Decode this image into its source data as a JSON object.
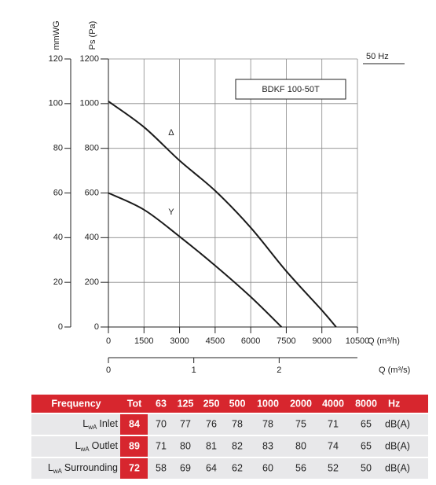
{
  "chart_data": {
    "type": "line",
    "x_label": "Q (m³/h)",
    "x2_label": "Q (m³/s)",
    "y_label": "Ps (Pa)",
    "y2_label": "mmWG",
    "model": "BDKF 100-50T",
    "frequency": "50 Hz",
    "xlim": [
      0,
      10500
    ],
    "xticks": [
      0,
      1500,
      3000,
      4500,
      6000,
      7500,
      9000,
      10500
    ],
    "x2lim": [
      0,
      2.917
    ],
    "x2ticks": [
      0,
      1,
      2
    ],
    "ylim": [
      0,
      1200
    ],
    "yticks": [
      0,
      200,
      400,
      600,
      800,
      1000,
      1200
    ],
    "y2lim": [
      0,
      120
    ],
    "y2ticks": [
      0,
      20,
      40,
      60,
      80,
      100,
      120
    ],
    "grid": true,
    "series": [
      {
        "name": "Δ",
        "color": "#1a1a1a",
        "x": [
          0,
          1500,
          3000,
          4500,
          6000,
          7500,
          9000,
          9600
        ],
        "values": [
          1010,
          895,
          745,
          610,
          445,
          250,
          75,
          0
        ]
      },
      {
        "name": "Y",
        "color": "#1a1a1a",
        "x": [
          0,
          1500,
          3000,
          4500,
          6000,
          7300
        ],
        "values": [
          600,
          525,
          405,
          275,
          135,
          0
        ]
      }
    ]
  },
  "table": {
    "frequency_header": "Frequency",
    "total_header": "Tot",
    "bands": [
      63,
      125,
      250,
      500,
      1000,
      2000,
      4000,
      8000
    ],
    "band_unit": "Hz",
    "rows": [
      {
        "symbol": "L",
        "sub": "wA",
        "name": "Inlet",
        "total": 84,
        "values": [
          70,
          77,
          76,
          78,
          78,
          75,
          71,
          65
        ],
        "unit": "dB(A)"
      },
      {
        "symbol": "L",
        "sub": "wA",
        "name": "Outlet",
        "total": 89,
        "values": [
          71,
          80,
          81,
          82,
          83,
          80,
          74,
          65
        ],
        "unit": "dB(A)"
      },
      {
        "symbol": "L",
        "sub": "wA",
        "name": "Surrounding",
        "total": 72,
        "values": [
          58,
          69,
          64,
          62,
          60,
          56,
          52,
          50
        ],
        "unit": "dB(A)"
      }
    ]
  }
}
